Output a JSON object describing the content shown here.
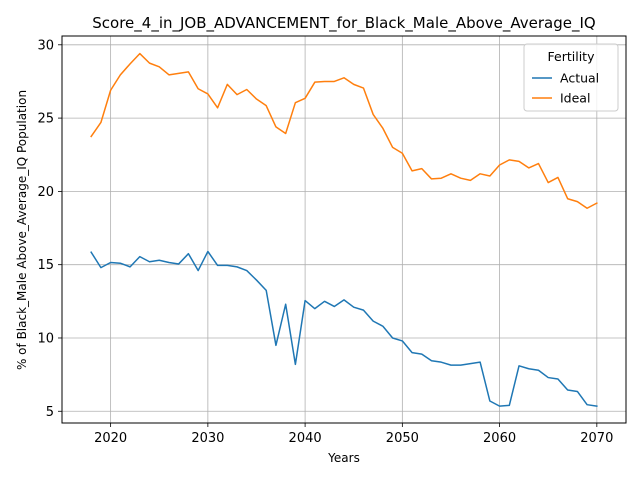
{
  "chart_data": {
    "type": "line",
    "title": "Score_4_in_JOB_ADVANCEMENT_for_Black_Male_Above_Average_IQ",
    "xlabel": "Years",
    "ylabel": "% of Black_Male Above_Average_IQ Population",
    "xlim": [
      2015,
      2073
    ],
    "ylim": [
      4.2,
      30.6
    ],
    "xticks": [
      2020,
      2030,
      2040,
      2050,
      2060,
      2070
    ],
    "yticks": [
      5,
      10,
      15,
      20,
      25,
      30
    ],
    "grid": true,
    "legend": {
      "title": "Fertility",
      "placement": "top-right"
    },
    "x": [
      2018,
      2019,
      2020,
      2021,
      2022,
      2023,
      2024,
      2025,
      2026,
      2027,
      2028,
      2029,
      2030,
      2031,
      2032,
      2033,
      2034,
      2035,
      2036,
      2037,
      2038,
      2039,
      2040,
      2041,
      2042,
      2043,
      2044,
      2045,
      2046,
      2047,
      2048,
      2049,
      2050,
      2051,
      2052,
      2053,
      2054,
      2055,
      2056,
      2057,
      2058,
      2059,
      2060,
      2061,
      2062,
      2063,
      2064,
      2065,
      2066,
      2067,
      2068,
      2069,
      2070
    ],
    "series": [
      {
        "name": "Actual",
        "color": "#1f77b4",
        "values": [
          15.85,
          14.8,
          15.15,
          15.1,
          14.85,
          15.55,
          15.2,
          15.3,
          15.15,
          15.05,
          15.75,
          14.6,
          15.9,
          14.95,
          14.95,
          14.85,
          14.6,
          13.95,
          13.25,
          9.5,
          12.3,
          8.2,
          12.55,
          12.0,
          12.5,
          12.15,
          12.6,
          12.1,
          11.9,
          11.15,
          10.8,
          10.0,
          9.8,
          9.0,
          8.9,
          8.45,
          8.35,
          8.15,
          8.15,
          8.25,
          8.35,
          5.7,
          5.35,
          5.4,
          8.1,
          7.9,
          7.8,
          7.3,
          7.2,
          6.45,
          6.35,
          5.45,
          5.35
        ]
      },
      {
        "name": "Ideal",
        "color": "#ff7f0e",
        "values": [
          23.75,
          24.7,
          26.9,
          27.95,
          28.7,
          29.4,
          28.75,
          28.5,
          27.95,
          28.05,
          28.15,
          27.0,
          26.65,
          25.7,
          27.3,
          26.6,
          26.95,
          26.3,
          25.85,
          24.4,
          23.95,
          26.05,
          26.35,
          27.45,
          27.5,
          27.5,
          27.75,
          27.3,
          27.05,
          25.25,
          24.3,
          23.0,
          22.6,
          21.4,
          21.55,
          20.85,
          20.9,
          21.2,
          20.9,
          20.75,
          21.2,
          21.05,
          21.8,
          22.15,
          22.05,
          21.6,
          21.9,
          20.6,
          20.95,
          19.5,
          19.3,
          18.85,
          19.2
        ]
      }
    ]
  }
}
